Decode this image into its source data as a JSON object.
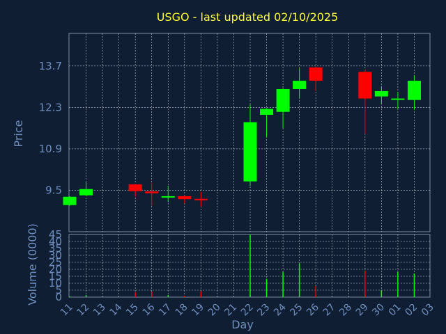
{
  "title": "USGO - last updated 02/10/2025",
  "colors": {
    "background": "#0f1e33",
    "up": "#00ff00",
    "down": "#ff0000",
    "grid": "#ffffff",
    "axis_text": "#6f8fbf",
    "title": "#ffff33",
    "frame": "#7f8ca0"
  },
  "chart_data": [
    {
      "type": "candlestick",
      "title": "USGO - last updated 02/10/2025",
      "ylabel": "Price",
      "xlabel": "Day",
      "ylim": [
        8.1,
        14.8
      ],
      "y_ticks": [
        "9.5",
        "10.9",
        "12.3",
        "13.7"
      ],
      "y_tick_values": [
        9.5,
        10.9,
        12.3,
        13.7
      ],
      "x_categories": [
        "11",
        "12",
        "13",
        "14",
        "15",
        "16",
        "17",
        "18",
        "19",
        "20",
        "21",
        "22",
        "23",
        "24",
        "25",
        "26",
        "27",
        "28",
        "29",
        "30",
        "01",
        "02",
        "03"
      ],
      "grid": true,
      "candles": [
        {
          "x": "11",
          "open": 9.0,
          "close": 9.28,
          "high": 9.3,
          "low": 8.98
        },
        {
          "x": "12",
          "open": 9.33,
          "close": 9.54,
          "high": 9.78,
          "low": 9.3
        },
        {
          "x": "15",
          "open": 9.7,
          "close": 9.47,
          "high": 9.72,
          "low": 9.28
        },
        {
          "x": "16",
          "open": 9.46,
          "close": 9.4,
          "high": 9.75,
          "low": 8.98
        },
        {
          "x": "17",
          "open": 9.28,
          "close": 9.3,
          "high": 9.65,
          "low": 9.1
        },
        {
          "x": "18",
          "open": 9.3,
          "close": 9.2,
          "high": 9.32,
          "low": 9.05
        },
        {
          "x": "19",
          "open": 9.21,
          "close": 9.2,
          "high": 9.45,
          "low": 8.95
        },
        {
          "x": "22",
          "open": 9.8,
          "close": 11.8,
          "high": 12.4,
          "low": 9.65
        },
        {
          "x": "23",
          "open": 12.05,
          "close": 12.25,
          "high": 12.28,
          "low": 11.3
        },
        {
          "x": "24",
          "open": 12.15,
          "close": 12.92,
          "high": 12.95,
          "low": 11.6
        },
        {
          "x": "25",
          "open": 12.92,
          "close": 13.2,
          "high": 13.62,
          "low": 12.62
        },
        {
          "x": "26",
          "open": 13.65,
          "close": 13.2,
          "high": 13.68,
          "low": 12.85
        },
        {
          "x": "29",
          "open": 13.5,
          "close": 12.6,
          "high": 13.58,
          "low": 11.4
        },
        {
          "x": "30",
          "open": 12.67,
          "close": 12.85,
          "high": 13.0,
          "low": 12.4
        },
        {
          "x": "01",
          "open": 12.57,
          "close": 12.6,
          "high": 12.82,
          "low": 12.25
        },
        {
          "x": "02",
          "open": 12.55,
          "close": 13.2,
          "high": 13.38,
          "low": 12.22
        }
      ]
    },
    {
      "type": "bar",
      "ylabel": "Volume (0000)",
      "xlabel": "Day",
      "ylim": [
        0,
        45
      ],
      "y_ticks": [
        "0",
        "5",
        "10",
        "15",
        "20",
        "25",
        "30",
        "35",
        "40",
        "45"
      ],
      "y_tick_values": [
        0,
        5,
        10,
        15,
        20,
        25,
        30,
        35,
        40,
        45
      ],
      "categories": [
        "11",
        "12",
        "13",
        "14",
        "15",
        "16",
        "17",
        "18",
        "19",
        "20",
        "21",
        "22",
        "23",
        "24",
        "25",
        "26",
        "27",
        "28",
        "29",
        "30",
        "01",
        "02",
        "03"
      ],
      "bars": [
        {
          "x": "11",
          "value": 0.5,
          "dir": "up"
        },
        {
          "x": "12",
          "value": 1.5,
          "dir": "up"
        },
        {
          "x": "15",
          "value": 3.5,
          "dir": "down"
        },
        {
          "x": "16",
          "value": 4,
          "dir": "down"
        },
        {
          "x": "17",
          "value": 1.5,
          "dir": "up"
        },
        {
          "x": "18",
          "value": 1,
          "dir": "down"
        },
        {
          "x": "19",
          "value": 4,
          "dir": "down"
        },
        {
          "x": "22",
          "value": 45,
          "dir": "up"
        },
        {
          "x": "23",
          "value": 13,
          "dir": "up"
        },
        {
          "x": "24",
          "value": 18,
          "dir": "up"
        },
        {
          "x": "25",
          "value": 24,
          "dir": "up"
        },
        {
          "x": "26",
          "value": 8,
          "dir": "down"
        },
        {
          "x": "29",
          "value": 19,
          "dir": "down"
        },
        {
          "x": "30",
          "value": 5,
          "dir": "up"
        },
        {
          "x": "01",
          "value": 18,
          "dir": "up"
        },
        {
          "x": "02",
          "value": 17,
          "dir": "up"
        }
      ]
    }
  ]
}
